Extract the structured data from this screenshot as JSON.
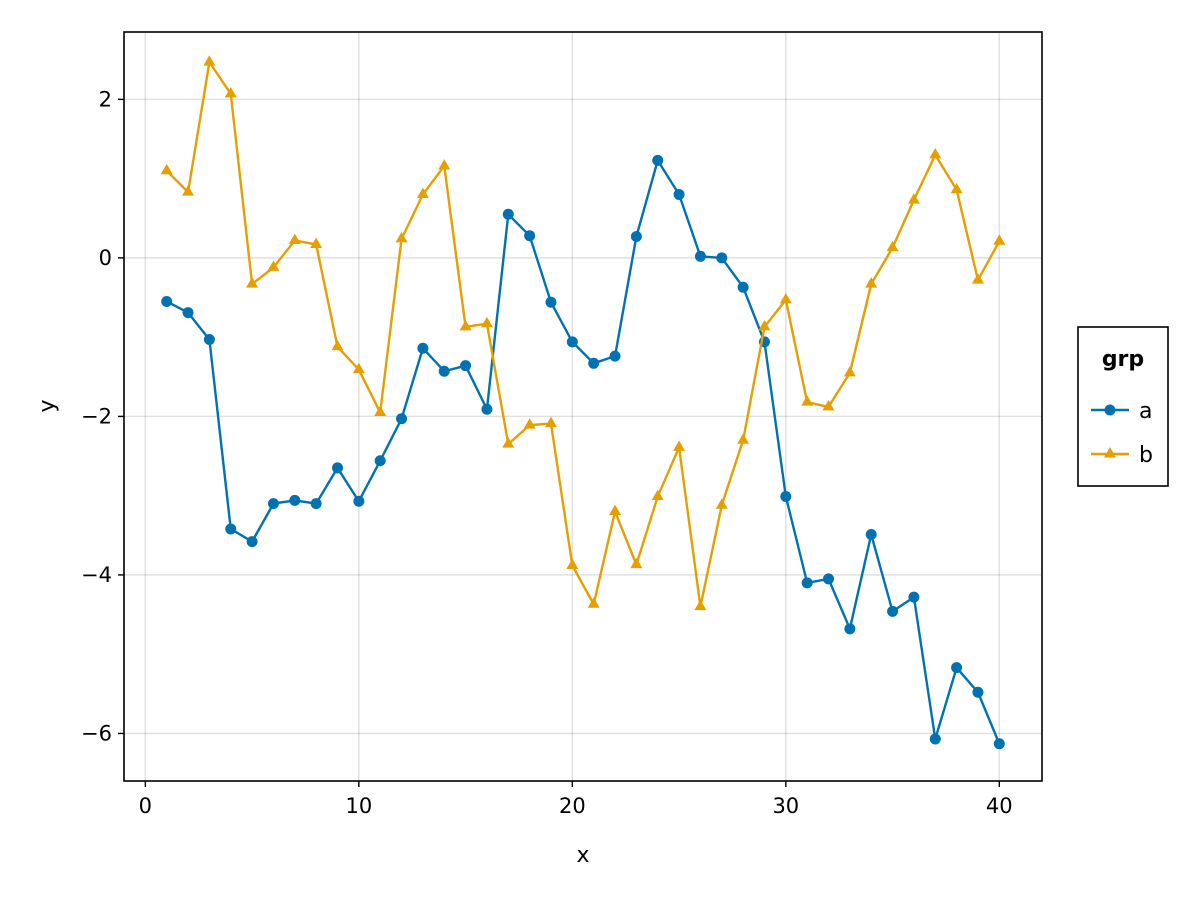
{
  "chart_data": {
    "type": "line",
    "title": "",
    "xlabel": "x",
    "ylabel": "y",
    "xlim": [
      -1,
      42
    ],
    "ylim": [
      -6.6,
      2.85
    ],
    "xticks": [
      0,
      10,
      20,
      30,
      40
    ],
    "yticks": [
      -6,
      -4,
      -2,
      0,
      2
    ],
    "xtick_labels": [
      "0",
      "10",
      "20",
      "30",
      "40"
    ],
    "ytick_labels": [
      "−6",
      "−4",
      "−2",
      "0",
      "2"
    ],
    "grid": true,
    "legend": {
      "title": "grp",
      "placement": "right"
    },
    "x": [
      1,
      2,
      3,
      4,
      5,
      6,
      7,
      8,
      9,
      10,
      11,
      12,
      13,
      14,
      15,
      16,
      17,
      18,
      19,
      20,
      21,
      22,
      23,
      24,
      25,
      26,
      27,
      28,
      29,
      30,
      31,
      32,
      33,
      34,
      35,
      36,
      37,
      38,
      39,
      40
    ],
    "series": [
      {
        "name": "a",
        "color": "#0072b2",
        "marker": "circle",
        "values": [
          -0.55,
          -0.69,
          -1.03,
          -3.42,
          -3.58,
          -3.1,
          -3.06,
          -3.1,
          -2.65,
          -3.07,
          -2.56,
          -2.03,
          -1.14,
          -1.43,
          -1.36,
          -1.91,
          0.55,
          0.28,
          -0.56,
          -1.06,
          -1.33,
          -1.24,
          0.27,
          1.23,
          0.8,
          0.02,
          0.0,
          -0.37,
          -1.06,
          -3.01,
          -4.1,
          -4.05,
          -4.68,
          -3.49,
          -4.46,
          -4.28,
          -6.07,
          -5.17,
          -5.48,
          -6.13
        ]
      },
      {
        "name": "b",
        "color": "#e69f00",
        "marker": "triangle",
        "values": [
          1.1,
          0.83,
          2.47,
          2.07,
          -0.33,
          -0.12,
          0.22,
          0.17,
          -1.12,
          -1.41,
          -1.95,
          0.24,
          0.8,
          1.16,
          -0.87,
          -0.83,
          -2.35,
          -2.11,
          -2.09,
          -3.88,
          -4.37,
          -3.2,
          -3.87,
          -3.01,
          -2.39,
          -4.4,
          -3.12,
          -2.3,
          -0.87,
          -0.53,
          -1.82,
          -1.88,
          -1.45,
          -0.33,
          0.13,
          0.73,
          1.3,
          0.86,
          -0.28,
          0.21
        ]
      }
    ]
  }
}
